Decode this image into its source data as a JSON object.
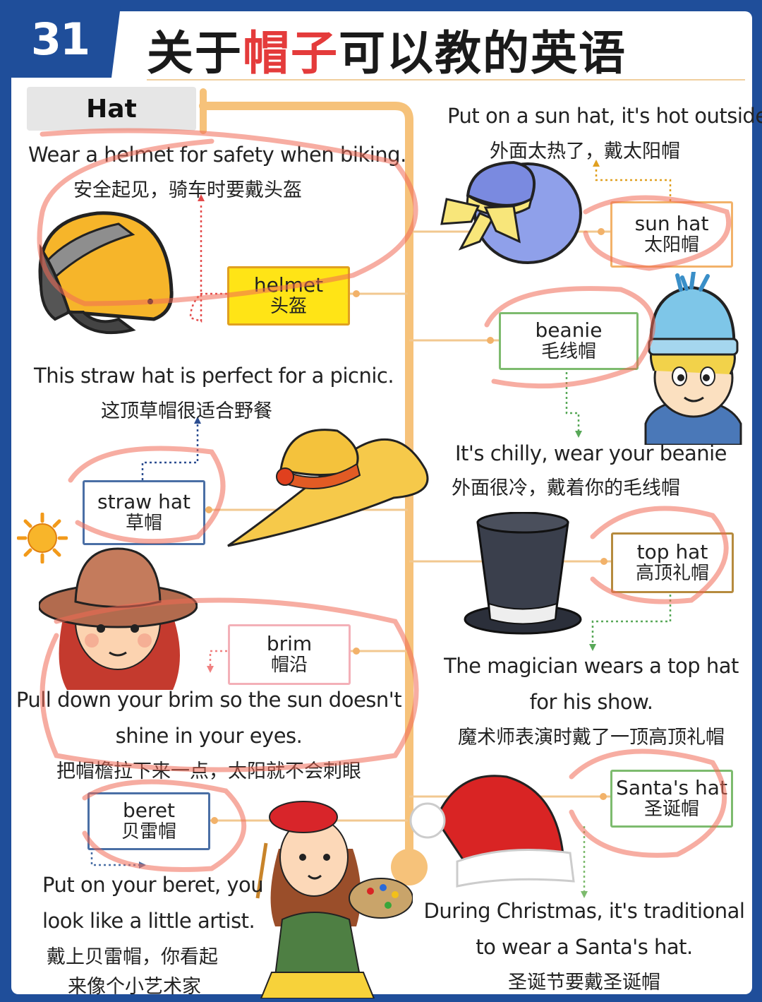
{
  "number": "31",
  "title": {
    "part1": "关于",
    "part2": "帽子",
    "part3": "可以教的英语"
  },
  "category": "Hat",
  "items": {
    "helmet": {
      "en": "helmet",
      "zh": "头盔",
      "sentence_en": "Wear a helmet for safety when biking.",
      "sentence_zh": "安全起见，骑车时要戴头盔"
    },
    "sunhat": {
      "en": "sun hat",
      "zh": "太阳帽",
      "sentence_en": "Put on a sun hat, it's hot outside.",
      "sentence_zh": "外面太热了，戴太阳帽"
    },
    "beanie": {
      "en": "beanie",
      "zh": "毛线帽",
      "sentence_en": "It's chilly, wear your beanie",
      "sentence_zh": "外面很冷，戴着你的毛线帽"
    },
    "strawhat": {
      "en": "straw hat",
      "zh": "草帽",
      "sentence_en": "This straw hat is perfect for a picnic.",
      "sentence_zh": "这顶草帽很适合野餐"
    },
    "tophat": {
      "en": "top hat",
      "zh": "高顶礼帽",
      "sentence_en_1": "The magician wears a top hat",
      "sentence_en_2": "for his show.",
      "sentence_zh": "魔术师表演时戴了一顶高顶礼帽"
    },
    "brim": {
      "en": "brim",
      "zh": "帽沿",
      "sentence_en_1": "Pull down your brim so the sun doesn't",
      "sentence_en_2": "shine in your eyes.",
      "sentence_zh": "把帽檐拉下来一点，太阳就不会刺眼"
    },
    "beret": {
      "en": "beret",
      "zh": "贝雷帽",
      "sentence_en_1": "Put on your beret, you",
      "sentence_en_2": "look like a little artist.",
      "sentence_zh_1": "戴上贝雷帽，你看起",
      "sentence_zh_2": "来像个小艺术家"
    },
    "santahat": {
      "en": "Santa's hat",
      "zh": "圣诞帽",
      "sentence_en_1": "During Christmas, it's traditional",
      "sentence_en_2": "to wear a Santa's hat.",
      "sentence_zh": "圣诞节要戴圣诞帽"
    }
  },
  "colors": {
    "frame": "#1f4e9a",
    "spine": "#f6c27a",
    "accent_red": "#e43b3b",
    "scribble": "#f06a55"
  }
}
